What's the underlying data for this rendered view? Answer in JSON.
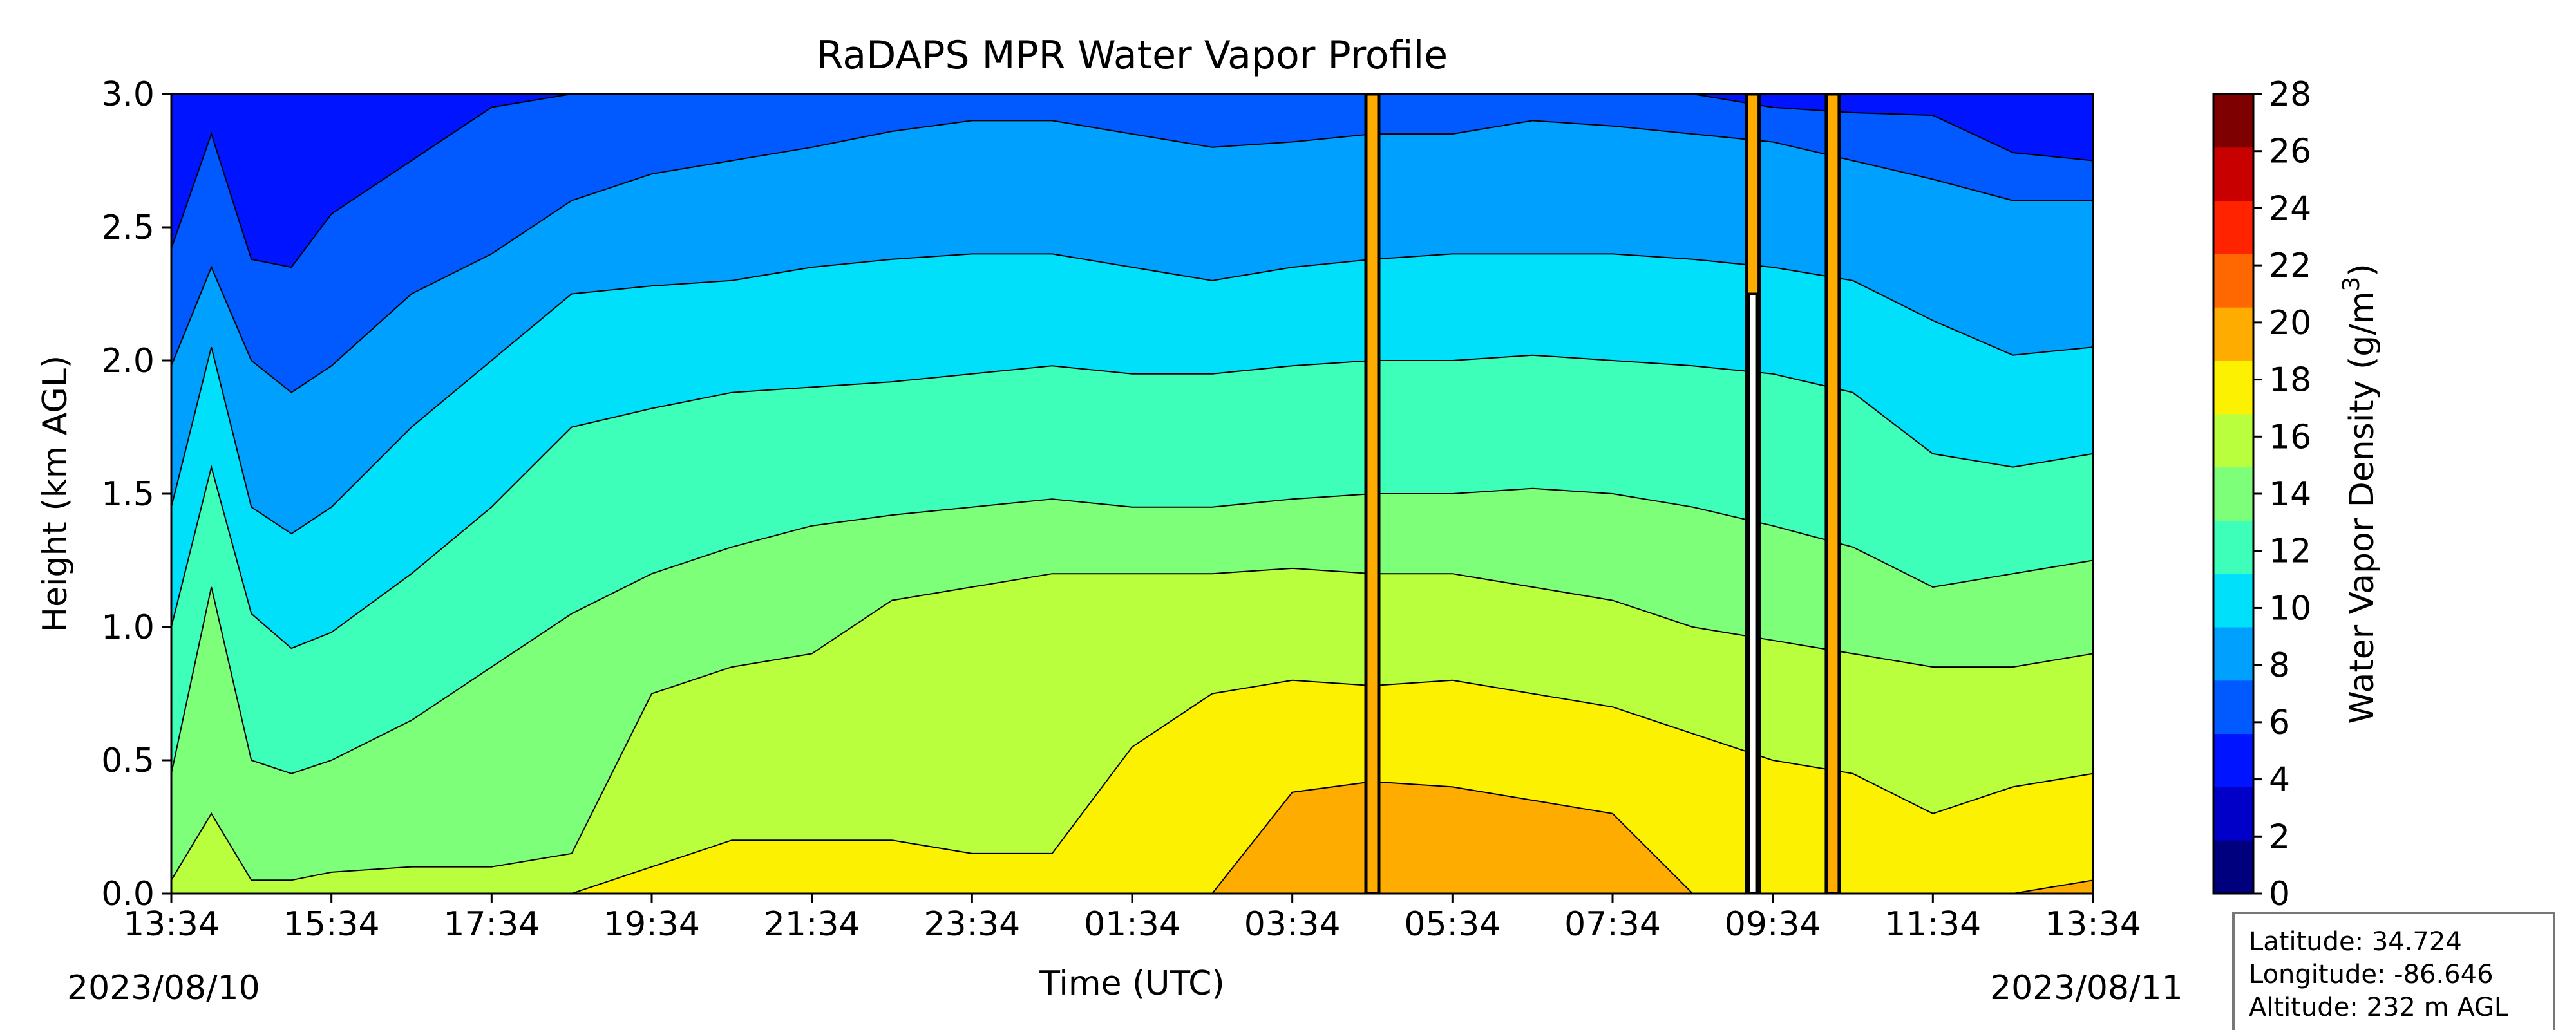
{
  "chart_data": {
    "type": "heatmap",
    "title": "RaDAPS MPR Water Vapor Profile",
    "xlabel": "Time (UTC)",
    "ylabel": "Height (km AGL)",
    "ylim": [
      0,
      3.0
    ],
    "x_ticks": [
      "13:34",
      "15:34",
      "17:34",
      "19:34",
      "21:34",
      "23:34",
      "01:34",
      "03:34",
      "05:34",
      "07:34",
      "09:34",
      "11:34",
      "13:34"
    ],
    "y_ticks": [
      "0.0",
      "0.5",
      "1.0",
      "1.5",
      "2.0",
      "2.5",
      "3.0"
    ],
    "date_start": "2023/08/10",
    "date_end": "2023/08/11",
    "colorbar": {
      "label": "Water Vapor Density (g/m",
      "label_sup": "3",
      "label_end": ")",
      "ticks": [
        "0",
        "2",
        "4",
        "6",
        "8",
        "10",
        "12",
        "14",
        "16",
        "18",
        "20",
        "22",
        "24",
        "26",
        "28"
      ],
      "colors": [
        "#00007f",
        "#0000c8",
        "#0014ff",
        "#005aff",
        "#00a0ff",
        "#00e0fb",
        "#3dffba",
        "#7dff7a",
        "#baff3d",
        "#fbf100",
        "#ffac00",
        "#ff6800",
        "#ff2300",
        "#c80000",
        "#7f0000"
      ]
    },
    "profiles": {
      "x": [
        0,
        0.5,
        1.0,
        1.5,
        2.0,
        3.0,
        4.0,
        5.0,
        6.0,
        7.0,
        8.0,
        9.0,
        10.0,
        11.0,
        12.0,
        13.0,
        14.0,
        15.0,
        16.0,
        17.0,
        18.0,
        19.0,
        20.0,
        21.0,
        22.0,
        23.0,
        24.0
      ],
      "contours": [
        {
          "level": 6,
          "heights": [
            2.42,
            2.85,
            2.38,
            2.35,
            2.55,
            2.75,
            2.95,
            3.0,
            3.0,
            3.0,
            3.0,
            3.0,
            3.0,
            3.0,
            3.0,
            3.0,
            3.0,
            3.0,
            3.0,
            3.0,
            3.0,
            3.0,
            2.95,
            2.93,
            2.92,
            2.78,
            2.75
          ]
        },
        {
          "level": 8,
          "heights": [
            1.98,
            2.35,
            2.0,
            1.88,
            1.98,
            2.25,
            2.4,
            2.6,
            2.7,
            2.75,
            2.8,
            2.86,
            2.9,
            2.9,
            2.85,
            2.8,
            2.82,
            2.85,
            2.85,
            2.9,
            2.88,
            2.85,
            2.82,
            2.75,
            2.68,
            2.6,
            2.6
          ]
        },
        {
          "level": 10,
          "heights": [
            1.45,
            2.05,
            1.45,
            1.35,
            1.45,
            1.75,
            2.0,
            2.25,
            2.28,
            2.3,
            2.35,
            2.38,
            2.4,
            2.4,
            2.35,
            2.3,
            2.35,
            2.38,
            2.4,
            2.4,
            2.4,
            2.38,
            2.35,
            2.3,
            2.15,
            2.02,
            2.05
          ]
        },
        {
          "level": 12,
          "heights": [
            1.0,
            1.6,
            1.05,
            0.92,
            0.98,
            1.2,
            1.45,
            1.75,
            1.82,
            1.88,
            1.9,
            1.92,
            1.95,
            1.98,
            1.95,
            1.95,
            1.98,
            2.0,
            2.0,
            2.02,
            2.0,
            1.98,
            1.95,
            1.88,
            1.65,
            1.6,
            1.65
          ]
        },
        {
          "level": 14,
          "heights": [
            0.45,
            1.15,
            0.5,
            0.45,
            0.5,
            0.65,
            0.85,
            1.05,
            1.2,
            1.3,
            1.38,
            1.42,
            1.45,
            1.48,
            1.45,
            1.45,
            1.48,
            1.5,
            1.5,
            1.52,
            1.5,
            1.45,
            1.38,
            1.3,
            1.15,
            1.2,
            1.25
          ]
        },
        {
          "level": 16,
          "heights": [
            0.05,
            0.3,
            0.05,
            0.05,
            0.08,
            0.1,
            0.1,
            0.15,
            0.75,
            0.85,
            0.9,
            1.1,
            1.15,
            1.2,
            1.2,
            1.2,
            1.22,
            1.2,
            1.2,
            1.15,
            1.1,
            1.0,
            0.95,
            0.9,
            0.85,
            0.85,
            0.9
          ]
        },
        {
          "level": 18,
          "heights": [
            0,
            0,
            0,
            0,
            0,
            0,
            0,
            0,
            0.1,
            0.2,
            0.2,
            0.2,
            0.15,
            0.15,
            0.55,
            0.75,
            0.8,
            0.78,
            0.8,
            0.75,
            0.7,
            0.6,
            0.5,
            0.45,
            0.3,
            0.4,
            0.45
          ]
        },
        {
          "level": 20,
          "heights": [
            0,
            0,
            0,
            0,
            0,
            0,
            0,
            0,
            0,
            0,
            0,
            0,
            0,
            0,
            0,
            0,
            0.38,
            0.42,
            0.4,
            0.35,
            0.3,
            0.0,
            0.0,
            0.0,
            0.0,
            0.0,
            0.05
          ]
        }
      ],
      "rain_spikes_x": [
        15.0,
        19.75,
        20.75
      ]
    },
    "station": {
      "latitude": "Latitude: 34.724",
      "longitude": "Longitude: -86.646",
      "altitude": "Altitude: 232 m AGL"
    }
  }
}
